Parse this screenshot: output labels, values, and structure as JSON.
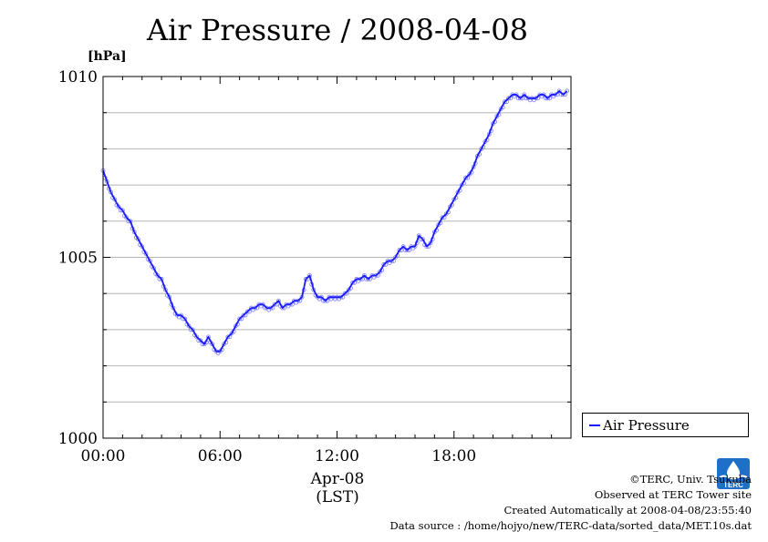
{
  "header": {
    "title": "Air Pressure / 2008-04-08",
    "unit": "[hPa]"
  },
  "legend": {
    "label": "Air Pressure",
    "color": "#1a1aff"
  },
  "xaxis_caption": {
    "date": "Apr-08",
    "tz": "(LST)"
  },
  "credits": {
    "copyright": "©TERC, Univ. Tsukuba",
    "observed": "Observed at TERC Tower site",
    "created": "Created Automatically at 2008-04-08/23:55:40",
    "source": "Data source : /home/hojyo/new/TERC-data/sorted_data/MET.10s.dat"
  },
  "logo": {
    "icon": "terc-logo-icon",
    "text": "TERC",
    "color": "#1e6fc8"
  },
  "chart_data": {
    "type": "line",
    "title": "Air Pressure / 2008-04-08",
    "ylabel": "[hPa]",
    "xlabel": "Apr-08 (LST)",
    "xlim": [
      0,
      24
    ],
    "ylim": [
      1000,
      1010
    ],
    "x_ticks": [
      0,
      6,
      12,
      18
    ],
    "x_tick_labels": [
      "00:00",
      "06:00",
      "12:00",
      "18:00"
    ],
    "y_ticks": [
      1000,
      1005,
      1010
    ],
    "y_tick_labels": [
      "1000",
      "1005",
      "1010"
    ],
    "grid": true,
    "legend_position": "right",
    "series": [
      {
        "name": "Air Pressure",
        "color": "#1a1aff",
        "x": [
          0.0,
          0.2,
          0.4,
          0.6,
          0.8,
          1.0,
          1.2,
          1.4,
          1.6,
          1.8,
          2.0,
          2.2,
          2.4,
          2.6,
          2.8,
          3.0,
          3.2,
          3.4,
          3.6,
          3.8,
          4.0,
          4.2,
          4.4,
          4.6,
          4.8,
          5.0,
          5.2,
          5.4,
          5.6,
          5.8,
          6.0,
          6.2,
          6.4,
          6.6,
          6.8,
          7.0,
          7.2,
          7.4,
          7.6,
          7.8,
          8.0,
          8.2,
          8.4,
          8.6,
          8.8,
          9.0,
          9.2,
          9.4,
          9.6,
          9.8,
          10.0,
          10.2,
          10.4,
          10.6,
          10.8,
          11.0,
          11.2,
          11.4,
          11.6,
          11.8,
          12.0,
          12.2,
          12.4,
          12.6,
          12.8,
          13.0,
          13.2,
          13.4,
          13.6,
          13.8,
          14.0,
          14.2,
          14.4,
          14.6,
          14.8,
          15.0,
          15.2,
          15.4,
          15.6,
          15.8,
          16.0,
          16.2,
          16.4,
          16.6,
          16.8,
          17.0,
          17.2,
          17.4,
          17.6,
          17.8,
          18.0,
          18.2,
          18.4,
          18.6,
          18.8,
          19.0,
          19.2,
          19.4,
          19.6,
          19.8,
          20.0,
          20.2,
          20.4,
          20.6,
          20.8,
          21.0,
          21.2,
          21.4,
          21.6,
          21.8,
          22.0,
          22.2,
          22.4,
          22.6,
          22.8,
          23.0,
          23.2,
          23.4,
          23.6,
          23.8
        ],
        "values": [
          1007.4,
          1007.1,
          1006.8,
          1006.6,
          1006.4,
          1006.3,
          1006.1,
          1006.0,
          1005.7,
          1005.5,
          1005.3,
          1005.1,
          1004.9,
          1004.7,
          1004.5,
          1004.4,
          1004.1,
          1003.9,
          1003.6,
          1003.4,
          1003.4,
          1003.3,
          1003.1,
          1003.0,
          1002.8,
          1002.7,
          1002.6,
          1002.8,
          1002.6,
          1002.4,
          1002.4,
          1002.6,
          1002.8,
          1002.9,
          1003.1,
          1003.3,
          1003.4,
          1003.5,
          1003.6,
          1003.6,
          1003.7,
          1003.7,
          1003.6,
          1003.6,
          1003.7,
          1003.8,
          1003.6,
          1003.7,
          1003.7,
          1003.8,
          1003.8,
          1003.9,
          1004.4,
          1004.5,
          1004.1,
          1003.9,
          1003.9,
          1003.8,
          1003.9,
          1003.9,
          1003.9,
          1003.9,
          1004.0,
          1004.1,
          1004.3,
          1004.4,
          1004.4,
          1004.5,
          1004.4,
          1004.5,
          1004.5,
          1004.6,
          1004.8,
          1004.9,
          1004.9,
          1005.0,
          1005.2,
          1005.3,
          1005.2,
          1005.3,
          1005.3,
          1005.6,
          1005.5,
          1005.3,
          1005.4,
          1005.7,
          1005.9,
          1006.1,
          1006.2,
          1006.4,
          1006.6,
          1006.8,
          1007.0,
          1007.2,
          1007.3,
          1007.5,
          1007.8,
          1008.0,
          1008.2,
          1008.4,
          1008.7,
          1008.9,
          1009.1,
          1009.3,
          1009.4,
          1009.5,
          1009.5,
          1009.4,
          1009.5,
          1009.4,
          1009.4,
          1009.4,
          1009.5,
          1009.5,
          1009.4,
          1009.5,
          1009.5,
          1009.6,
          1009.5,
          1009.6
        ]
      }
    ]
  }
}
